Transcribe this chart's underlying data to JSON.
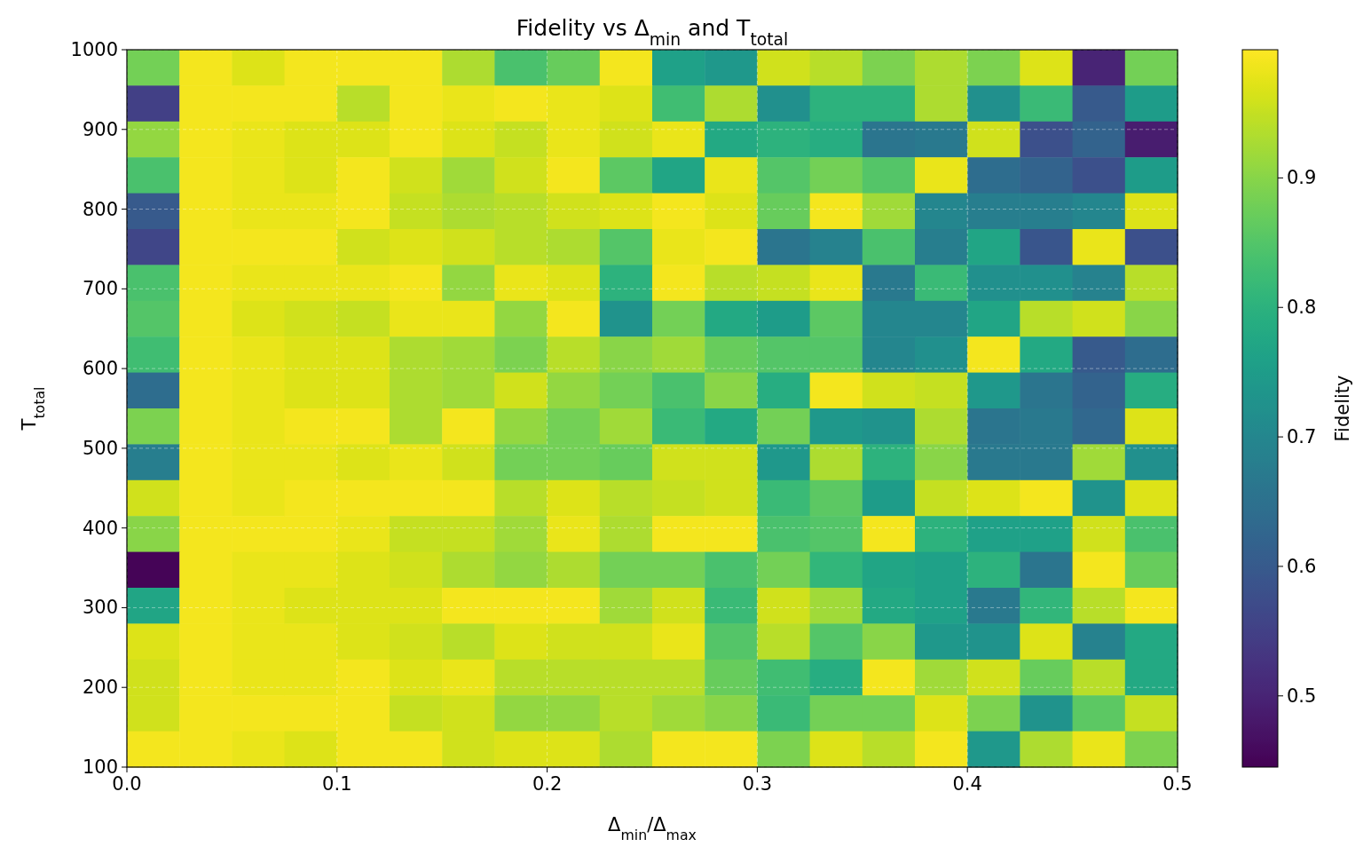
{
  "chart_data": {
    "type": "heatmap",
    "title": "Fidelity vs Δ$_{min}$ and T$_{total}$",
    "xlabel": "Δ$_{min}$/Δ$_{max}$",
    "ylabel": "T$_{total}$",
    "clabel": "Fidelity",
    "xlim": [
      0,
      0.5
    ],
    "xticks": [
      {
        "value": 0,
        "label": "0.0"
      },
      0.1,
      0.2,
      0.3,
      0.4,
      0.5
    ],
    "ylim": [
      100,
      1000
    ],
    "yticks": [
      100,
      200,
      300,
      400,
      500,
      600,
      700,
      800,
      900,
      1000
    ],
    "clim": [
      0.445,
      0.999
    ],
    "cticks": [
      0.5,
      0.6,
      0.7,
      0.8,
      0.9
    ],
    "grid": true,
    "cells": [
      [
        0.88,
        0.99,
        0.97,
        0.99,
        0.99,
        0.99,
        0.93,
        0.84,
        0.87,
        0.99,
        0.76,
        0.74,
        0.96,
        0.94,
        0.89,
        0.93,
        0.89,
        0.97,
        0.5,
        0.88
      ],
      [
        0.55,
        0.99,
        0.99,
        0.99,
        0.94,
        0.99,
        0.98,
        0.99,
        0.98,
        0.97,
        0.83,
        0.93,
        0.72,
        0.8,
        0.8,
        0.93,
        0.72,
        0.82,
        0.6,
        0.75
      ],
      [
        0.91,
        0.99,
        0.98,
        0.97,
        0.97,
        0.99,
        0.97,
        0.95,
        0.98,
        0.96,
        0.98,
        0.78,
        0.8,
        0.79,
        0.66,
        0.67,
        0.96,
        0.58,
        0.62,
        0.49
      ],
      [
        0.84,
        0.99,
        0.98,
        0.97,
        0.99,
        0.96,
        0.92,
        0.96,
        0.99,
        0.86,
        0.77,
        0.98,
        0.85,
        0.88,
        0.85,
        0.98,
        0.64,
        0.62,
        0.58,
        0.75
      ],
      [
        0.6,
        0.99,
        0.98,
        0.98,
        0.99,
        0.95,
        0.93,
        0.94,
        0.96,
        0.97,
        0.99,
        0.97,
        0.87,
        0.99,
        0.92,
        0.7,
        0.68,
        0.68,
        0.7,
        0.97
      ],
      [
        0.56,
        0.99,
        0.99,
        0.99,
        0.96,
        0.97,
        0.96,
        0.94,
        0.93,
        0.85,
        0.98,
        0.99,
        0.66,
        0.69,
        0.84,
        0.68,
        0.77,
        0.59,
        0.98,
        0.58
      ],
      [
        0.84,
        0.99,
        0.98,
        0.98,
        0.98,
        0.99,
        0.91,
        0.98,
        0.97,
        0.8,
        0.99,
        0.94,
        0.95,
        0.98,
        0.67,
        0.82,
        0.72,
        0.72,
        0.69,
        0.94
      ],
      [
        0.85,
        0.99,
        0.97,
        0.96,
        0.95,
        0.98,
        0.98,
        0.91,
        0.99,
        0.73,
        0.88,
        0.78,
        0.75,
        0.86,
        0.7,
        0.7,
        0.77,
        0.94,
        0.96,
        0.9
      ],
      [
        0.83,
        0.99,
        0.98,
        0.97,
        0.97,
        0.93,
        0.92,
        0.89,
        0.94,
        0.9,
        0.92,
        0.87,
        0.85,
        0.85,
        0.7,
        0.72,
        0.99,
        0.78,
        0.6,
        0.64
      ],
      [
        0.64,
        0.99,
        0.98,
        0.97,
        0.97,
        0.93,
        0.92,
        0.96,
        0.91,
        0.88,
        0.84,
        0.9,
        0.79,
        0.99,
        0.96,
        0.95,
        0.74,
        0.66,
        0.62,
        0.79
      ],
      [
        0.89,
        0.99,
        0.98,
        0.99,
        0.99,
        0.93,
        0.99,
        0.91,
        0.88,
        0.92,
        0.82,
        0.78,
        0.88,
        0.74,
        0.73,
        0.93,
        0.66,
        0.67,
        0.63,
        0.97
      ],
      [
        0.68,
        0.99,
        0.98,
        0.98,
        0.97,
        0.98,
        0.96,
        0.88,
        0.88,
        0.87,
        0.96,
        0.96,
        0.74,
        0.93,
        0.8,
        0.9,
        0.67,
        0.67,
        0.92,
        0.72
      ],
      [
        0.96,
        0.99,
        0.98,
        0.99,
        0.99,
        0.99,
        0.99,
        0.94,
        0.97,
        0.94,
        0.95,
        0.96,
        0.82,
        0.86,
        0.75,
        0.95,
        0.97,
        0.99,
        0.73,
        0.97
      ],
      [
        0.9,
        0.99,
        0.99,
        0.99,
        0.98,
        0.95,
        0.95,
        0.92,
        0.98,
        0.93,
        0.99,
        0.99,
        0.84,
        0.85,
        0.99,
        0.8,
        0.76,
        0.76,
        0.96,
        0.84
      ],
      [
        0.45,
        0.99,
        0.98,
        0.98,
        0.97,
        0.96,
        0.93,
        0.91,
        0.93,
        0.88,
        0.88,
        0.84,
        0.88,
        0.81,
        0.77,
        0.76,
        0.8,
        0.66,
        0.99,
        0.87
      ],
      [
        0.77,
        0.99,
        0.98,
        0.97,
        0.97,
        0.97,
        0.99,
        0.99,
        0.99,
        0.92,
        0.96,
        0.82,
        0.96,
        0.92,
        0.78,
        0.76,
        0.67,
        0.81,
        0.94,
        0.99
      ],
      [
        0.97,
        0.99,
        0.98,
        0.98,
        0.97,
        0.96,
        0.94,
        0.97,
        0.96,
        0.96,
        0.98,
        0.85,
        0.94,
        0.85,
        0.9,
        0.74,
        0.73,
        0.97,
        0.69,
        0.78
      ],
      [
        0.96,
        0.99,
        0.98,
        0.98,
        0.99,
        0.97,
        0.98,
        0.94,
        0.94,
        0.94,
        0.94,
        0.87,
        0.83,
        0.79,
        0.99,
        0.92,
        0.96,
        0.87,
        0.94,
        0.78
      ],
      [
        0.96,
        0.99,
        0.99,
        0.99,
        0.99,
        0.95,
        0.96,
        0.91,
        0.91,
        0.94,
        0.92,
        0.9,
        0.82,
        0.88,
        0.88,
        0.97,
        0.89,
        0.73,
        0.86,
        0.95
      ],
      [
        0.99,
        0.99,
        0.98,
        0.97,
        0.99,
        0.99,
        0.96,
        0.97,
        0.97,
        0.93,
        0.99,
        0.99,
        0.89,
        0.97,
        0.94,
        0.99,
        0.74,
        0.93,
        0.98,
        0.89
      ]
    ]
  }
}
